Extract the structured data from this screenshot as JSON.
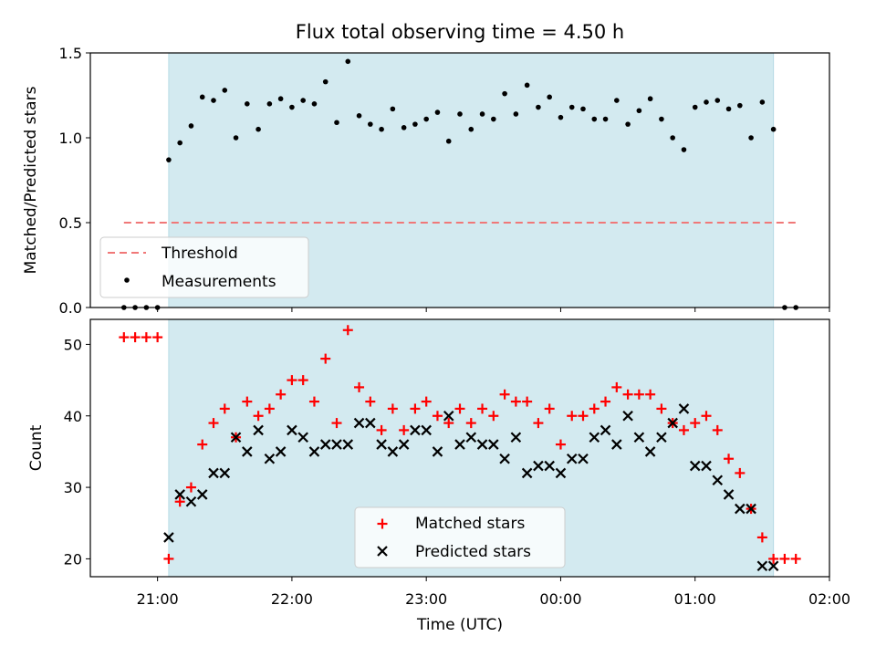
{
  "chart_data": [
    {
      "type": "scatter",
      "title": "Flux total observing time = 4.50 h",
      "xlabel": "",
      "ylabel": "Matched/Predicted stars",
      "ylim": [
        0,
        1.5
      ],
      "yticks": [
        "0.0",
        "0.5",
        "1.0",
        "1.5"
      ],
      "observing_window": [
        "21:05",
        "01:35"
      ],
      "shaded_color": "#d3eaf0",
      "legend": "lower-left",
      "threshold": {
        "name": "Threshold",
        "value": 0.5,
        "x": [
          "20:45",
          "01:45"
        ],
        "color": "#f07878"
      },
      "series": [
        {
          "name": "Measurements",
          "color": "#000000",
          "marker": "dot",
          "x": [
            "20:45",
            "20:50",
            "20:55",
            "21:00",
            "21:05",
            "21:10",
            "21:15",
            "21:20",
            "21:25",
            "21:30",
            "21:35",
            "21:40",
            "21:45",
            "21:50",
            "21:55",
            "22:00",
            "22:05",
            "22:10",
            "22:15",
            "22:20",
            "22:25",
            "22:30",
            "22:35",
            "22:40",
            "22:45",
            "22:50",
            "22:55",
            "23:00",
            "23:05",
            "23:10",
            "23:15",
            "23:20",
            "23:25",
            "23:30",
            "23:35",
            "23:40",
            "23:45",
            "23:50",
            "23:55",
            "00:00",
            "00:05",
            "00:10",
            "00:15",
            "00:20",
            "00:25",
            "00:30",
            "00:35",
            "00:40",
            "00:45",
            "00:50",
            "00:55",
            "01:00",
            "01:05",
            "01:10",
            "01:15",
            "01:20",
            "01:25",
            "01:30",
            "01:35",
            "01:40",
            "01:45"
          ],
          "values": [
            0.0,
            0.0,
            0.0,
            0.0,
            0.87,
            0.97,
            1.07,
            1.24,
            1.22,
            1.28,
            1.0,
            1.2,
            1.05,
            1.2,
            1.23,
            1.18,
            1.22,
            1.2,
            1.33,
            1.09,
            1.45,
            1.13,
            1.08,
            1.05,
            1.17,
            1.06,
            1.08,
            1.11,
            1.15,
            0.98,
            1.14,
            1.05,
            1.14,
            1.11,
            1.26,
            1.14,
            1.31,
            1.18,
            1.24,
            1.12,
            1.18,
            1.17,
            1.11,
            1.11,
            1.22,
            1.08,
            1.16,
            1.23,
            1.11,
            1.0,
            0.93,
            1.18,
            1.21,
            1.22,
            1.17,
            1.19,
            1.0,
            1.21,
            1.05,
            0.0,
            0.0
          ]
        }
      ]
    },
    {
      "type": "scatter",
      "title": "",
      "xlabel": "Time (UTC)",
      "ylabel": "Count",
      "ylim": [
        17.5,
        53.5
      ],
      "yticks": [
        "20",
        "30",
        "40",
        "50"
      ],
      "xticks": [
        "21:00",
        "22:00",
        "23:00",
        "00:00",
        "01:00",
        "02:00"
      ],
      "observing_window": [
        "21:05",
        "01:35"
      ],
      "shaded_color": "#d3eaf0",
      "legend": "lower-center",
      "series": [
        {
          "name": "Matched stars",
          "color": "#ff0000",
          "marker": "plus",
          "x": [
            "20:45",
            "20:50",
            "20:55",
            "21:00",
            "21:05",
            "21:10",
            "21:15",
            "21:20",
            "21:25",
            "21:30",
            "21:35",
            "21:40",
            "21:45",
            "21:50",
            "21:55",
            "22:00",
            "22:05",
            "22:10",
            "22:15",
            "22:20",
            "22:25",
            "22:30",
            "22:35",
            "22:40",
            "22:45",
            "22:50",
            "22:55",
            "23:00",
            "23:05",
            "23:10",
            "23:15",
            "23:20",
            "23:25",
            "23:30",
            "23:35",
            "23:40",
            "23:45",
            "23:50",
            "23:55",
            "00:00",
            "00:05",
            "00:10",
            "00:15",
            "00:20",
            "00:25",
            "00:30",
            "00:35",
            "00:40",
            "00:45",
            "00:50",
            "00:55",
            "01:00",
            "01:05",
            "01:10",
            "01:15",
            "01:20",
            "01:25",
            "01:30",
            "01:35",
            "01:40",
            "01:45"
          ],
          "values": [
            51,
            51,
            51,
            51,
            20,
            28,
            30,
            36,
            39,
            41,
            37,
            42,
            40,
            41,
            43,
            45,
            45,
            42,
            48,
            39,
            52,
            44,
            42,
            38,
            41,
            38,
            41,
            42,
            40,
            39,
            41,
            39,
            41,
            40,
            43,
            42,
            42,
            39,
            41,
            36,
            40,
            40,
            41,
            42,
            44,
            43,
            43,
            43,
            41,
            39,
            38,
            39,
            40,
            38,
            34,
            32,
            27,
            23,
            20,
            20,
            20
          ]
        },
        {
          "name": "Predicted stars",
          "color": "#000000",
          "marker": "x",
          "x": [
            "21:05",
            "21:10",
            "21:15",
            "21:20",
            "21:25",
            "21:30",
            "21:35",
            "21:40",
            "21:45",
            "21:50",
            "21:55",
            "22:00",
            "22:05",
            "22:10",
            "22:15",
            "22:20",
            "22:25",
            "22:30",
            "22:35",
            "22:40",
            "22:45",
            "22:50",
            "22:55",
            "23:00",
            "23:05",
            "23:10",
            "23:15",
            "23:20",
            "23:25",
            "23:30",
            "23:35",
            "23:40",
            "23:45",
            "23:50",
            "23:55",
            "00:00",
            "00:05",
            "00:10",
            "00:15",
            "00:20",
            "00:25",
            "00:30",
            "00:35",
            "00:40",
            "00:45",
            "00:50",
            "00:55",
            "01:00",
            "01:05",
            "01:10",
            "01:15",
            "01:20",
            "01:25",
            "01:30",
            "01:35"
          ],
          "values": [
            23,
            29,
            28,
            29,
            32,
            32,
            37,
            35,
            38,
            34,
            35,
            38,
            37,
            35,
            36,
            36,
            36,
            39,
            39,
            36,
            35,
            36,
            38,
            38,
            35,
            40,
            36,
            37,
            36,
            36,
            34,
            37,
            32,
            33,
            33,
            32,
            34,
            34,
            37,
            38,
            36,
            40,
            37,
            35,
            37,
            39,
            41,
            33,
            33,
            31,
            29,
            27,
            27,
            19,
            19
          ]
        }
      ]
    }
  ]
}
